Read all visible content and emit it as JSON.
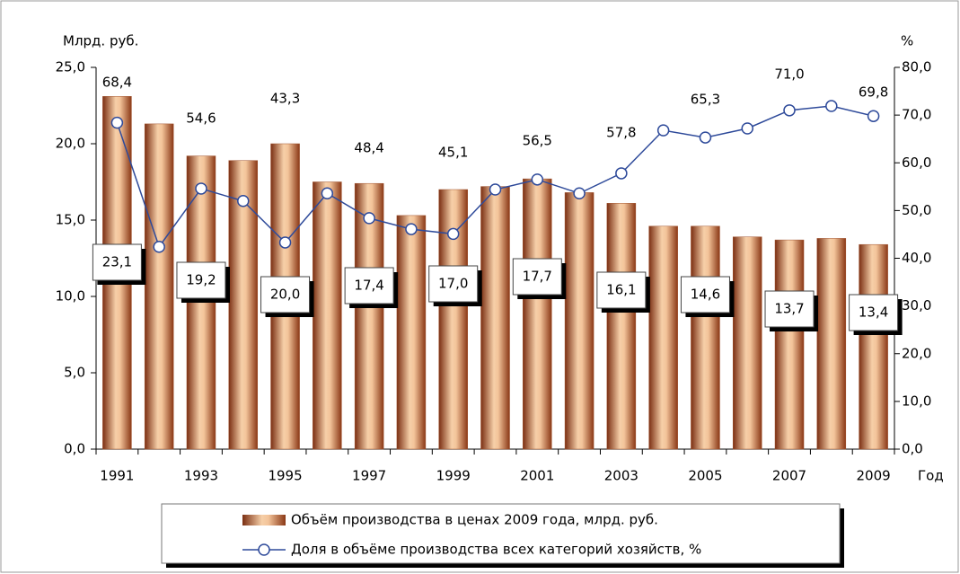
{
  "chart_data": {
    "type": "combo",
    "y_label": "Млрд. руб.",
    "y2_label": "%",
    "x_label": "Год",
    "categories": [
      "1991",
      null,
      "1993",
      null,
      "1995",
      null,
      "1997",
      null,
      "1999",
      null,
      "2001",
      null,
      "2003",
      null,
      "2005",
      null,
      "2007",
      null,
      "2009"
    ],
    "ylim": [
      0,
      25
    ],
    "yticks": [
      {
        "value": 0,
        "label": "0,0"
      },
      {
        "value": 5,
        "label": "5,0"
      },
      {
        "value": 10,
        "label": "10,0"
      },
      {
        "value": 15,
        "label": "15,0"
      },
      {
        "value": 20,
        "label": "20,0"
      },
      {
        "value": 25,
        "label": "25,0"
      }
    ],
    "y2lim": [
      0,
      80
    ],
    "y2ticks": [
      {
        "value": 0,
        "label": "0,0"
      },
      {
        "value": 10,
        "label": "10,0"
      },
      {
        "value": 20,
        "label": "20,0"
      },
      {
        "value": 30,
        "label": "30,0"
      },
      {
        "value": 40,
        "label": "40,0"
      },
      {
        "value": 50,
        "label": "50,0"
      },
      {
        "value": 60,
        "label": "60,0"
      },
      {
        "value": 70,
        "label": "70,0"
      },
      {
        "value": 80,
        "label": "80,0"
      }
    ],
    "series": [
      {
        "name": "Объём производства в ценах 2009 года, млрд. руб.",
        "type": "bar",
        "color": "#a0522d",
        "values": [
          23.1,
          21.3,
          19.2,
          18.9,
          20.0,
          17.5,
          17.4,
          15.3,
          17.0,
          17.2,
          17.7,
          16.8,
          16.1,
          14.6,
          14.6,
          13.9,
          13.7,
          13.8,
          13.4
        ],
        "value_labels": [
          "23,1",
          null,
          "19,2",
          null,
          "20,0",
          null,
          "17,4",
          null,
          "17,0",
          null,
          "17,7",
          null,
          "16,1",
          null,
          "14,6",
          null,
          "13,7",
          null,
          "13,4"
        ]
      },
      {
        "name": "Доля в объёме производства всех категорий хозяйств, %",
        "type": "line",
        "axis": "y2",
        "color": "#2e4a9a",
        "values": [
          68.4,
          42.4,
          54.6,
          52.0,
          43.3,
          53.6,
          48.4,
          46.1,
          45.1,
          54.4,
          56.5,
          53.6,
          57.8,
          66.8,
          65.3,
          67.2,
          71.0,
          71.9,
          69.8
        ],
        "value_labels": [
          "68,4",
          null,
          "54,6",
          null,
          "43,3",
          null,
          "48,4",
          null,
          "45,1",
          null,
          "56,5",
          null,
          "57,8",
          null,
          "65,3",
          null,
          "71,0",
          null,
          "69,8"
        ]
      }
    ]
  }
}
